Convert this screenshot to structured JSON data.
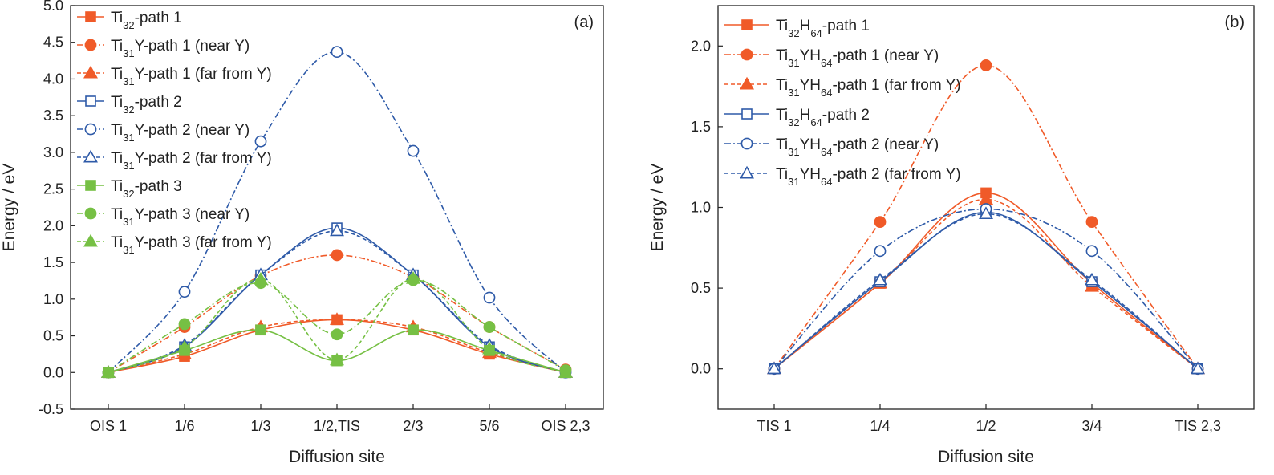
{
  "chart_data": [
    {
      "type": "line",
      "panel_label": "(a)",
      "xlabel": "Diffusion site",
      "ylabel": "Energy / eV",
      "categories": [
        "OIS 1",
        "1/6",
        "1/3",
        "1/2,TIS",
        "2/3",
        "5/6",
        "OIS 2,3"
      ],
      "ylim": [
        -0.5,
        5.0
      ],
      "yticks": [
        "-0.5",
        "0.0",
        "0.5",
        "1.0",
        "1.5",
        "2.0",
        "2.5",
        "3.0",
        "3.5",
        "4.0",
        "4.5",
        "5.0"
      ],
      "legend_position": "top-left",
      "series": [
        {
          "name": "Ti32-path 1",
          "label_parts": [
            "Ti",
            "32",
            "-path 1"
          ],
          "color": "#f05a28",
          "marker": "square",
          "filled": true,
          "dash": "solid",
          "values": [
            0.0,
            0.22,
            0.58,
            0.72,
            0.58,
            0.25,
            0.0
          ]
        },
        {
          "name": "Ti31Y-path 1 (near Y)",
          "label_parts": [
            "Ti",
            "31",
            "Y-path 1 (near Y)"
          ],
          "color": "#f05a28",
          "marker": "circle",
          "filled": true,
          "dash": "dashdot",
          "values": [
            0.0,
            0.62,
            1.32,
            1.6,
            1.3,
            0.62,
            0.04
          ]
        },
        {
          "name": "Ti31Y-path 1 (far from Y)",
          "label_parts": [
            "Ti",
            "31",
            "Y-path 1 (far from Y)"
          ],
          "color": "#f05a28",
          "marker": "triangle",
          "filled": true,
          "dash": "dashed",
          "values": [
            0.0,
            0.25,
            0.62,
            0.72,
            0.62,
            0.27,
            0.0
          ]
        },
        {
          "name": "Ti32-path 2",
          "label_parts": [
            "Ti",
            "32",
            "-path 2"
          ],
          "color": "#2e5aa8",
          "marker": "square",
          "filled": false,
          "dash": "solid",
          "values": [
            0.0,
            0.35,
            1.33,
            1.97,
            1.33,
            0.35,
            0.0
          ]
        },
        {
          "name": "Ti31Y-path 2 (near Y)",
          "label_parts": [
            "Ti",
            "31",
            "Y-path 2 (near Y)"
          ],
          "color": "#2e5aa8",
          "marker": "circle",
          "filled": false,
          "dash": "dashdot",
          "values": [
            0.0,
            1.1,
            3.15,
            4.37,
            3.02,
            1.02,
            0.0
          ]
        },
        {
          "name": "Ti31Y-path 2 (far from Y)",
          "label_parts": [
            "Ti",
            "31",
            "Y-path 2 (far from Y)"
          ],
          "color": "#2e5aa8",
          "marker": "triangle",
          "filled": false,
          "dash": "dashed",
          "values": [
            0.0,
            0.37,
            1.33,
            1.93,
            1.33,
            0.37,
            0.0
          ]
        },
        {
          "name": "Ti32-path 3",
          "label_parts": [
            "Ti",
            "32",
            "-path 3"
          ],
          "color": "#76c044",
          "marker": "square",
          "filled": true,
          "dash": "solid",
          "values": [
            0.0,
            0.3,
            0.58,
            0.16,
            0.58,
            0.3,
            0.0
          ]
        },
        {
          "name": "Ti31Y-path 3 (near Y)",
          "label_parts": [
            "Ti",
            "31",
            "Y-path 3 (near Y)"
          ],
          "color": "#76c044",
          "marker": "circle",
          "filled": true,
          "dash": "dashdot",
          "values": [
            0.0,
            0.66,
            1.22,
            0.52,
            1.26,
            0.62,
            0.03
          ]
        },
        {
          "name": "Ti31Y-path 3 (far from Y)",
          "label_parts": [
            "Ti",
            "31",
            "Y-path 3 (far from Y)"
          ],
          "color": "#76c044",
          "marker": "triangle",
          "filled": true,
          "dash": "dashed",
          "values": [
            0.0,
            0.34,
            1.27,
            0.17,
            1.28,
            0.32,
            0.0
          ]
        }
      ]
    },
    {
      "type": "line",
      "panel_label": "(b)",
      "xlabel": "Diffusion site",
      "ylabel": "Energy / eV",
      "categories": [
        "TIS 1",
        "1/4",
        "1/2",
        "3/4",
        "TIS 2,3"
      ],
      "ylim": [
        -0.25,
        2.25
      ],
      "yticks": [
        "0.0",
        "0.5",
        "1.0",
        "1.5",
        "2.0"
      ],
      "legend_position": "top-left",
      "series": [
        {
          "name": "Ti32H64-path 1",
          "label_parts": [
            "Ti",
            "32",
            "H",
            "64",
            "-path 1"
          ],
          "color": "#f05a28",
          "marker": "square",
          "filled": true,
          "dash": "solid",
          "values": [
            0.0,
            0.53,
            1.09,
            0.53,
            0.0
          ]
        },
        {
          "name": "Ti31YH64-path 1 (near Y)",
          "label_parts": [
            "Ti",
            "31",
            "YH",
            "64",
            "-path 1 (near Y)"
          ],
          "color": "#f05a28",
          "marker": "circle",
          "filled": true,
          "dash": "dashdot",
          "values": [
            0.0,
            0.91,
            1.88,
            0.91,
            0.0
          ]
        },
        {
          "name": "Ti31YH64-path 1 (far from Y)",
          "label_parts": [
            "Ti",
            "31",
            "YH",
            "64",
            "-path 1 (far from Y)"
          ],
          "color": "#f05a28",
          "marker": "triangle",
          "filled": true,
          "dash": "dashed",
          "values": [
            0.0,
            0.53,
            1.05,
            0.51,
            0.0
          ]
        },
        {
          "name": "Ti32H64-path 2",
          "label_parts": [
            "Ti",
            "32",
            "H",
            "64",
            "-path 2"
          ],
          "color": "#2e5aa8",
          "marker": "square",
          "filled": false,
          "dash": "solid",
          "values": [
            0.0,
            0.54,
            0.97,
            0.54,
            0.0
          ]
        },
        {
          "name": "Ti31YH64-path 2 (near Y)",
          "label_parts": [
            "Ti",
            "31",
            "YH",
            "64",
            "-path 2 (near Y)"
          ],
          "color": "#2e5aa8",
          "marker": "circle",
          "filled": false,
          "dash": "dashdot",
          "values": [
            0.0,
            0.73,
            0.99,
            0.73,
            0.0
          ]
        },
        {
          "name": "Ti31YH64-path 2 (far from Y)",
          "label_parts": [
            "Ti",
            "31",
            "YH",
            "64",
            "-path 2 (far from Y)"
          ],
          "color": "#2e5aa8",
          "marker": "triangle",
          "filled": false,
          "dash": "dashed",
          "values": [
            0.0,
            0.55,
            0.96,
            0.55,
            0.0
          ]
        }
      ]
    }
  ]
}
